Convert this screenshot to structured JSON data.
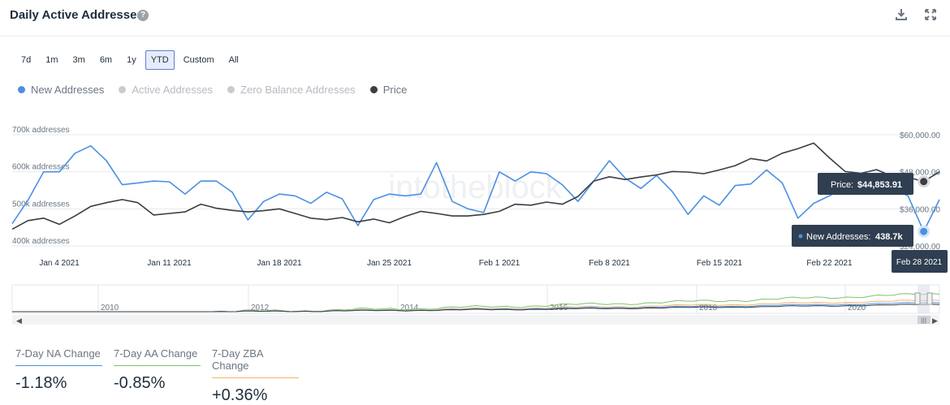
{
  "header": {
    "title": "Daily Active Addresses",
    "help_glyph": "?"
  },
  "icons": {
    "help": "help-icon",
    "download": "download-icon",
    "expand": "expand-icon"
  },
  "range_buttons": [
    "7d",
    "1m",
    "3m",
    "6m",
    "1y",
    "YTD",
    "Custom",
    "All"
  ],
  "active_range": "YTD",
  "legend": [
    {
      "label": "New Addresses",
      "color": "#4a90e2",
      "enabled": true
    },
    {
      "label": "Active Addresses",
      "color": "#c8ccd1",
      "enabled": false
    },
    {
      "label": "Zero Balance Addresses",
      "color": "#c8ccd1",
      "enabled": false
    },
    {
      "label": "Price",
      "color": "#3a3d42",
      "enabled": true
    }
  ],
  "tooltip": {
    "price_label": "Price:",
    "price_value": "$44,853.91",
    "na_label": "New Addresses:",
    "na_value": "438.7k",
    "date": "Feb 28 2021"
  },
  "watermark": "intotheblock",
  "kpis": [
    {
      "label": "7-Day NA Change",
      "value": "-1.18%",
      "color": "#4a90e2"
    },
    {
      "label": "7-Day AA Change",
      "value": "-0.85%",
      "color": "#7cc36b"
    },
    {
      "label": "7-Day ZBA Change",
      "value": "+0.36%",
      "color": "#f0b36a"
    }
  ],
  "chart_data": {
    "type": "line",
    "x": [
      "Jan 1",
      "Jan 2",
      "Jan 3",
      "Jan 4",
      "Jan 5",
      "Jan 6",
      "Jan 7",
      "Jan 8",
      "Jan 9",
      "Jan 10",
      "Jan 11",
      "Jan 12",
      "Jan 13",
      "Jan 14",
      "Jan 15",
      "Jan 16",
      "Jan 17",
      "Jan 18",
      "Jan 19",
      "Jan 20",
      "Jan 21",
      "Jan 22",
      "Jan 23",
      "Jan 24",
      "Jan 25",
      "Jan 26",
      "Jan 27",
      "Jan 28",
      "Jan 29",
      "Jan 30",
      "Jan 31",
      "Feb 1",
      "Feb 2",
      "Feb 3",
      "Feb 4",
      "Feb 5",
      "Feb 6",
      "Feb 7",
      "Feb 8",
      "Feb 9",
      "Feb 10",
      "Feb 11",
      "Feb 12",
      "Feb 13",
      "Feb 14",
      "Feb 15",
      "Feb 16",
      "Feb 17",
      "Feb 18",
      "Feb 19",
      "Feb 20",
      "Feb 21",
      "Feb 22",
      "Feb 23",
      "Feb 24",
      "Feb 25",
      "Feb 26",
      "Feb 27",
      "Feb 28",
      "Mar 1"
    ],
    "x_ticks": [
      "Jan 4 2021",
      "Jan 11 2021",
      "Jan 18 2021",
      "Jan 25 2021",
      "Feb 1 2021",
      "Feb 8 2021",
      "Feb 15 2021",
      "Feb 22 2021"
    ],
    "series": [
      {
        "name": "New Addresses",
        "axis": "left",
        "color": "#4a90e2",
        "values": [
          460,
          523,
          600,
          600,
          650,
          670,
          630,
          565,
          570,
          575,
          573,
          540,
          575,
          575,
          545,
          470,
          520,
          540,
          535,
          515,
          545,
          527,
          455,
          525,
          540,
          535,
          540,
          625,
          520,
          500,
          490,
          600,
          575,
          600,
          595,
          565,
          520,
          575,
          630,
          583,
          555,
          590,
          547,
          485,
          535,
          510,
          563,
          567,
          605,
          570,
          475,
          515,
          535,
          559,
          562,
          578,
          554,
          535,
          439,
          525
        ]
      },
      {
        "name": "Price",
        "axis": "right",
        "color": "#3a3d42",
        "values": [
          29400,
          32200,
          33000,
          31000,
          33700,
          36800,
          38000,
          39000,
          38000,
          34000,
          34500,
          35000,
          37500,
          36200,
          35500,
          35000,
          35400,
          36000,
          34500,
          33000,
          32500,
          33200,
          31800,
          32700,
          31500,
          33500,
          35200,
          34500,
          33700,
          33700,
          34200,
          35200,
          37500,
          37200,
          38200,
          37500,
          40000,
          45000,
          46400,
          45500,
          46300,
          47000,
          48100,
          47900,
          47400,
          48600,
          50000,
          52300,
          51500,
          54000,
          55500,
          57300,
          52500,
          48100,
          47500,
          48700,
          46500,
          46200,
          44854,
          48000
        ]
      }
    ],
    "y_left": {
      "label_ticks": [
        "400k addresses",
        "500k addresses",
        "600k addresses",
        "700k addresses"
      ],
      "tick_values": [
        400,
        500,
        600,
        700
      ],
      "range": [
        400,
        700
      ],
      "unit": "k addresses"
    },
    "y_right": {
      "label_ticks": [
        "$24,000.00",
        "$36,000.00",
        "$48,000.00",
        "$60,000.00"
      ],
      "tick_values": [
        24000,
        36000,
        48000,
        60000
      ],
      "range": [
        24000,
        60000
      ]
    },
    "navigator": {
      "years": [
        "2010",
        "2012",
        "2014",
        "2016",
        "2018",
        "2020"
      ]
    },
    "grid": true
  }
}
